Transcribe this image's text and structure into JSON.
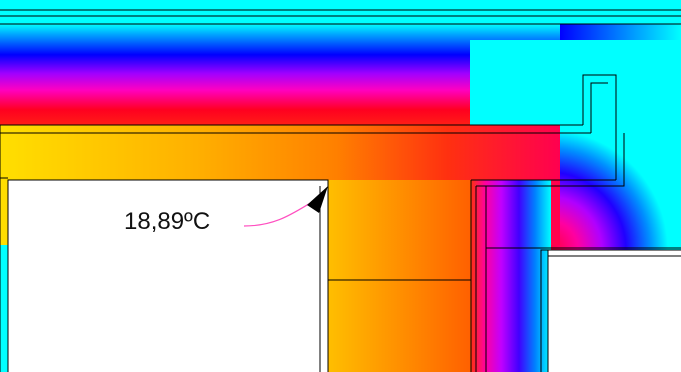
{
  "annotation": {
    "temperature_label": "18,89ºC"
  },
  "colors": {
    "outside_cold": "#00ffff",
    "cold_blue": "#0000ff",
    "mid_violet": "#a000ff",
    "mid_magenta": "#ff00c0",
    "mid_red": "#ff0020",
    "warm_orange": "#ff9000",
    "inside_warm": "#ffdf00",
    "room_background": "#ffffff",
    "leader_line": "#ff4fc0",
    "arrow_head": "#000000",
    "outline": "#000000"
  },
  "icons": {
    "pointer": "arrow-head-icon"
  }
}
